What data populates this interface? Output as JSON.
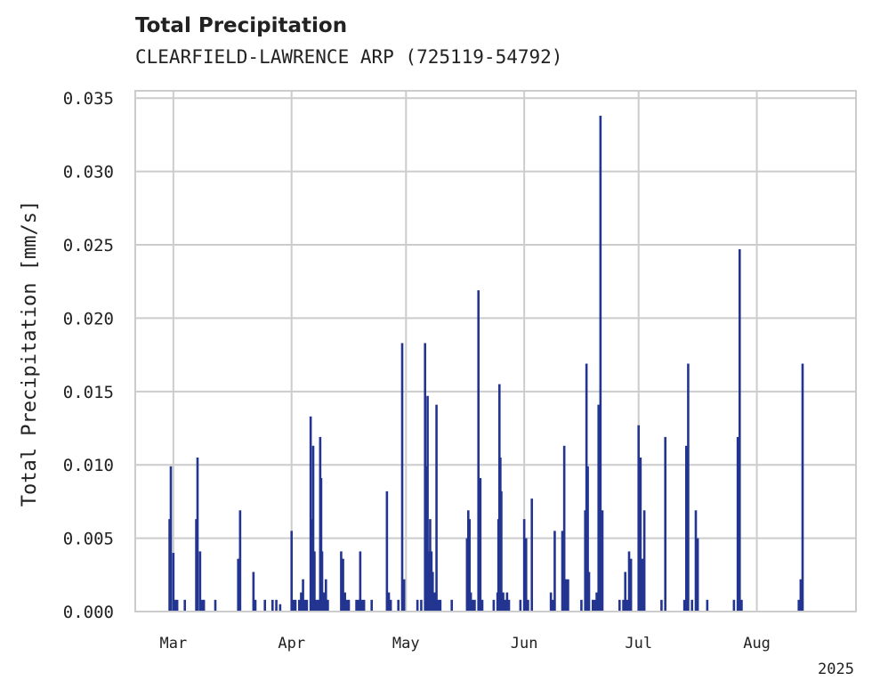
{
  "header": {
    "title": "Total Precipitation",
    "subtitle": "CLEARFIELD-LAWRENCE ARP (725119-54792)"
  },
  "colors": {
    "series": "#233591",
    "grid": "#cccccc",
    "axis_frame": "#cccccc",
    "text": "#222222"
  },
  "chart_data": {
    "type": "bar",
    "title": "Total Precipitation",
    "subtitle": "CLEARFIELD-LAWRENCE ARP (725119-54792)",
    "xlabel": "",
    "ylabel": "Total Precipitation [mm/s]",
    "year_label": "2025",
    "xlim": [
      "2025-02-19",
      "2025-08-27"
    ],
    "ylim": [
      0,
      0.0355
    ],
    "yticks": [
      0.0,
      0.005,
      0.01,
      0.015,
      0.02,
      0.025,
      0.03,
      0.035
    ],
    "ytick_labels": [
      "0.000",
      "0.005",
      "0.010",
      "0.015",
      "0.020",
      "0.025",
      "0.030",
      "0.035"
    ],
    "xticks": [
      {
        "date": "2025-03-01",
        "label": "Mar"
      },
      {
        "date": "2025-04-01",
        "label": "Apr"
      },
      {
        "date": "2025-05-01",
        "label": "May"
      },
      {
        "date": "2025-06-01",
        "label": "Jun"
      },
      {
        "date": "2025-07-01",
        "label": "Jul"
      },
      {
        "date": "2025-08-01",
        "label": "Aug"
      }
    ],
    "grid": true,
    "series": [
      {
        "points": [
          [
            "2025-02-28",
            0.0063
          ],
          [
            "2025-02-28T08",
            0.0099
          ],
          [
            "2025-03-01",
            0.004
          ],
          [
            "2025-03-01T12",
            0.0008
          ],
          [
            "2025-03-02",
            0.0008
          ],
          [
            "2025-03-04",
            0.0008
          ],
          [
            "2025-03-07",
            0.0063
          ],
          [
            "2025-03-07T08",
            0.0105
          ],
          [
            "2025-03-08",
            0.0041
          ],
          [
            "2025-03-08T12",
            0.0008
          ],
          [
            "2025-03-09",
            0.0008
          ],
          [
            "2025-03-12",
            0.0008
          ],
          [
            "2025-03-18",
            0.0036
          ],
          [
            "2025-03-18T12",
            0.0069
          ],
          [
            "2025-03-22",
            0.0027
          ],
          [
            "2025-03-22T12",
            0.0008
          ],
          [
            "2025-03-25",
            0.0008
          ],
          [
            "2025-03-27",
            0.0008
          ],
          [
            "2025-03-28",
            0.0008
          ],
          [
            "2025-03-29",
            0.0005
          ],
          [
            "2025-04-01",
            0.0055
          ],
          [
            "2025-04-01T12",
            0.0008
          ],
          [
            "2025-04-02",
            0.0008
          ],
          [
            "2025-04-03",
            0.0008
          ],
          [
            "2025-04-03T12",
            0.0013
          ],
          [
            "2025-04-04",
            0.0022
          ],
          [
            "2025-04-04T12",
            0.0008
          ],
          [
            "2025-04-05",
            0.0008
          ],
          [
            "2025-04-06",
            0.0133
          ],
          [
            "2025-04-06T08",
            0.0063
          ],
          [
            "2025-04-06T16",
            0.0113
          ],
          [
            "2025-04-07",
            0.0041
          ],
          [
            "2025-04-07T12",
            0.0008
          ],
          [
            "2025-04-08",
            0.0008
          ],
          [
            "2025-04-08T12",
            0.0119
          ],
          [
            "2025-04-08T18",
            0.0091
          ],
          [
            "2025-04-09",
            0.0041
          ],
          [
            "2025-04-09T12",
            0.0013
          ],
          [
            "2025-04-10",
            0.0022
          ],
          [
            "2025-04-10T12",
            0.0008
          ],
          [
            "2025-04-14",
            0.0041
          ],
          [
            "2025-04-14T12",
            0.0036
          ],
          [
            "2025-04-15",
            0.0013
          ],
          [
            "2025-04-15T12",
            0.0008
          ],
          [
            "2025-04-16",
            0.0008
          ],
          [
            "2025-04-18",
            0.0008
          ],
          [
            "2025-04-18T12",
            0.0008
          ],
          [
            "2025-04-19",
            0.0041
          ],
          [
            "2025-04-19T12",
            0.0008
          ],
          [
            "2025-04-20",
            0.0008
          ],
          [
            "2025-04-22",
            0.0008
          ],
          [
            "2025-04-26",
            0.0082
          ],
          [
            "2025-04-26T12",
            0.0013
          ],
          [
            "2025-04-27",
            0.0008
          ],
          [
            "2025-04-29",
            0.0008
          ],
          [
            "2025-04-30",
            0.0183
          ],
          [
            "2025-04-30T12",
            0.0022
          ],
          [
            "2025-05-04",
            0.0008
          ],
          [
            "2025-05-05",
            0.0008
          ],
          [
            "2025-05-06",
            0.0183
          ],
          [
            "2025-05-06T08",
            0.0099
          ],
          [
            "2025-05-06T16",
            0.0147
          ],
          [
            "2025-05-07",
            0.0041
          ],
          [
            "2025-05-07T08",
            0.0063
          ],
          [
            "2025-05-07T16",
            0.0041
          ],
          [
            "2025-05-08",
            0.0027
          ],
          [
            "2025-05-08T12",
            0.0013
          ],
          [
            "2025-05-09",
            0.0141
          ],
          [
            "2025-05-09T12",
            0.0008
          ],
          [
            "2025-05-10",
            0.0008
          ],
          [
            "2025-05-13",
            0.0008
          ],
          [
            "2025-05-17",
            0.005
          ],
          [
            "2025-05-17T08",
            0.0069
          ],
          [
            "2025-05-17T16",
            0.0063
          ],
          [
            "2025-05-18",
            0.0013
          ],
          [
            "2025-05-18T12",
            0.0008
          ],
          [
            "2025-05-19",
            0.0008
          ],
          [
            "2025-05-20",
            0.0219
          ],
          [
            "2025-05-20T12",
            0.0091
          ],
          [
            "2025-05-21",
            0.0008
          ],
          [
            "2025-05-24",
            0.0008
          ],
          [
            "2025-05-25",
            0.0013
          ],
          [
            "2025-05-25T06",
            0.0063
          ],
          [
            "2025-05-25T12",
            0.0155
          ],
          [
            "2025-05-25T18",
            0.0105
          ],
          [
            "2025-05-26",
            0.0082
          ],
          [
            "2025-05-26T12",
            0.0013
          ],
          [
            "2025-05-27",
            0.0008
          ],
          [
            "2025-05-27T12",
            0.0013
          ],
          [
            "2025-05-28",
            0.0008
          ],
          [
            "2025-05-31",
            0.0008
          ],
          [
            "2025-06-01",
            0.0063
          ],
          [
            "2025-06-01T12",
            0.005
          ],
          [
            "2025-06-02",
            0.0008
          ],
          [
            "2025-06-03",
            0.0077
          ],
          [
            "2025-06-08",
            0.0013
          ],
          [
            "2025-06-08T12",
            0.0008
          ],
          [
            "2025-06-09",
            0.0055
          ],
          [
            "2025-06-11",
            0.0055
          ],
          [
            "2025-06-11T12",
            0.0113
          ],
          [
            "2025-06-12",
            0.0022
          ],
          [
            "2025-06-12T12",
            0.0022
          ],
          [
            "2025-06-16",
            0.0008
          ],
          [
            "2025-06-17",
            0.0069
          ],
          [
            "2025-06-17T08",
            0.0169
          ],
          [
            "2025-06-17T16",
            0.0099
          ],
          [
            "2025-06-18",
            0.0027
          ],
          [
            "2025-06-19",
            0.0008
          ],
          [
            "2025-06-19T12",
            0.0008
          ],
          [
            "2025-06-20",
            0.0013
          ],
          [
            "2025-06-20T12",
            0.0141
          ],
          [
            "2025-06-21",
            0.0338
          ],
          [
            "2025-06-21T12",
            0.0069
          ],
          [
            "2025-06-26",
            0.0008
          ],
          [
            "2025-06-27",
            0.0008
          ],
          [
            "2025-06-27T12",
            0.0027
          ],
          [
            "2025-06-28",
            0.0008
          ],
          [
            "2025-06-28T12",
            0.0041
          ],
          [
            "2025-06-29",
            0.0036
          ],
          [
            "2025-07-01",
            0.0127
          ],
          [
            "2025-07-01T12",
            0.0105
          ],
          [
            "2025-07-02",
            0.0036
          ],
          [
            "2025-07-02T12",
            0.0069
          ],
          [
            "2025-07-07",
            0.0008
          ],
          [
            "2025-07-08",
            0.0119
          ],
          [
            "2025-07-13",
            0.0008
          ],
          [
            "2025-07-13T12",
            0.0113
          ],
          [
            "2025-07-14",
            0.0169
          ],
          [
            "2025-07-15",
            0.0008
          ],
          [
            "2025-07-16",
            0.0069
          ],
          [
            "2025-07-16T12",
            0.005
          ],
          [
            "2025-07-19",
            0.0008
          ],
          [
            "2025-07-26",
            0.0008
          ],
          [
            "2025-07-27",
            0.0119
          ],
          [
            "2025-07-27T12",
            0.0247
          ],
          [
            "2025-07-28",
            0.0008
          ],
          [
            "2025-08-12",
            0.0008
          ],
          [
            "2025-08-12T12",
            0.0022
          ],
          [
            "2025-08-13",
            0.0169
          ]
        ]
      }
    ]
  }
}
